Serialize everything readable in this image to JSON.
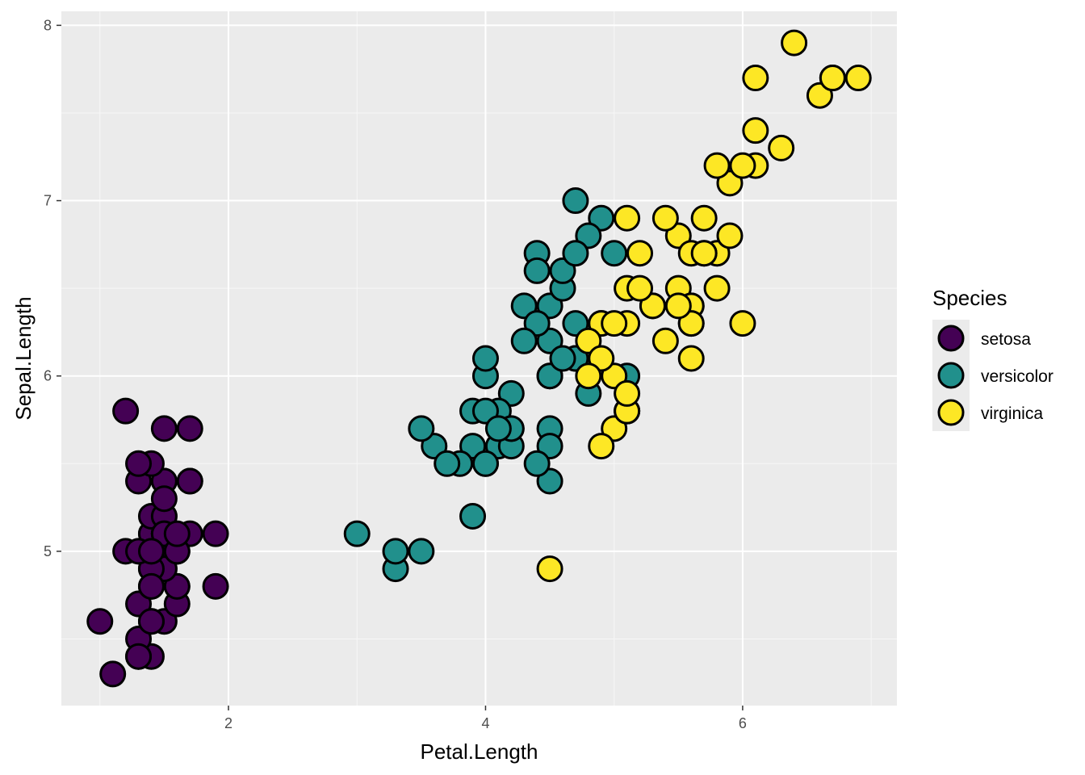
{
  "chart_data": {
    "type": "scatter",
    "xlabel": "Petal.Length",
    "ylabel": "Sepal.Length",
    "xlim": [
      0.7,
      7.2
    ],
    "ylim": [
      4.12,
      8.08
    ],
    "xticks": [
      2,
      4,
      6
    ],
    "yticks": [
      5,
      6,
      7,
      8
    ],
    "grid": true,
    "legend": {
      "title": "Species",
      "placement": "right"
    },
    "series": [
      {
        "name": "setosa",
        "color": "#440154",
        "points": [
          [
            1.4,
            5.1
          ],
          [
            1.4,
            4.9
          ],
          [
            1.3,
            4.7
          ],
          [
            1.5,
            4.6
          ],
          [
            1.4,
            5.0
          ],
          [
            1.7,
            5.4
          ],
          [
            1.4,
            4.6
          ],
          [
            1.5,
            5.0
          ],
          [
            1.4,
            4.4
          ],
          [
            1.5,
            4.9
          ],
          [
            1.5,
            5.4
          ],
          [
            1.6,
            4.8
          ],
          [
            1.4,
            4.8
          ],
          [
            1.1,
            4.3
          ],
          [
            1.2,
            5.8
          ],
          [
            1.5,
            5.7
          ],
          [
            1.3,
            5.4
          ],
          [
            1.4,
            5.1
          ],
          [
            1.7,
            5.7
          ],
          [
            1.5,
            5.1
          ],
          [
            1.7,
            5.4
          ],
          [
            1.5,
            5.1
          ],
          [
            1.0,
            4.6
          ],
          [
            1.7,
            5.1
          ],
          [
            1.9,
            4.8
          ],
          [
            1.6,
            5.0
          ],
          [
            1.6,
            5.0
          ],
          [
            1.5,
            5.2
          ],
          [
            1.4,
            5.2
          ],
          [
            1.6,
            4.7
          ],
          [
            1.6,
            4.8
          ],
          [
            1.5,
            5.4
          ],
          [
            1.5,
            5.2
          ],
          [
            1.4,
            5.5
          ],
          [
            1.5,
            4.9
          ],
          [
            1.2,
            5.0
          ],
          [
            1.3,
            5.5
          ],
          [
            1.4,
            4.9
          ],
          [
            1.3,
            4.4
          ],
          [
            1.5,
            5.1
          ],
          [
            1.3,
            5.0
          ],
          [
            1.3,
            4.5
          ],
          [
            1.3,
            4.4
          ],
          [
            1.6,
            5.0
          ],
          [
            1.9,
            5.1
          ],
          [
            1.4,
            4.8
          ],
          [
            1.6,
            5.1
          ],
          [
            1.4,
            4.6
          ],
          [
            1.5,
            5.3
          ],
          [
            1.4,
            5.0
          ]
        ]
      },
      {
        "name": "versicolor",
        "color": "#21908C",
        "points": [
          [
            4.7,
            7.0
          ],
          [
            4.5,
            6.4
          ],
          [
            4.9,
            6.9
          ],
          [
            4.0,
            5.5
          ],
          [
            4.6,
            6.5
          ],
          [
            4.5,
            5.7
          ],
          [
            4.7,
            6.3
          ],
          [
            3.3,
            4.9
          ],
          [
            4.6,
            6.6
          ],
          [
            3.9,
            5.2
          ],
          [
            3.5,
            5.0
          ],
          [
            4.2,
            5.9
          ],
          [
            4.0,
            6.0
          ],
          [
            4.7,
            6.1
          ],
          [
            3.6,
            5.6
          ],
          [
            4.4,
            6.7
          ],
          [
            4.5,
            5.6
          ],
          [
            4.1,
            5.8
          ],
          [
            4.5,
            6.2
          ],
          [
            3.9,
            5.6
          ],
          [
            4.8,
            5.9
          ],
          [
            4.0,
            6.1
          ],
          [
            4.9,
            6.3
          ],
          [
            4.7,
            6.1
          ],
          [
            4.3,
            6.4
          ],
          [
            4.4,
            6.6
          ],
          [
            4.8,
            6.8
          ],
          [
            5.0,
            6.7
          ],
          [
            4.5,
            6.0
          ],
          [
            3.5,
            5.7
          ],
          [
            3.8,
            5.5
          ],
          [
            3.7,
            5.5
          ],
          [
            3.9,
            5.8
          ],
          [
            5.1,
            6.0
          ],
          [
            4.5,
            5.4
          ],
          [
            4.5,
            6.0
          ],
          [
            4.7,
            6.7
          ],
          [
            4.4,
            6.3
          ],
          [
            4.1,
            5.6
          ],
          [
            4.0,
            5.5
          ],
          [
            4.4,
            5.5
          ],
          [
            4.6,
            6.1
          ],
          [
            4.0,
            5.8
          ],
          [
            3.3,
            5.0
          ],
          [
            4.2,
            5.6
          ],
          [
            4.2,
            5.7
          ],
          [
            4.2,
            5.7
          ],
          [
            4.3,
            6.2
          ],
          [
            3.0,
            5.1
          ],
          [
            4.1,
            5.7
          ]
        ]
      },
      {
        "name": "virginica",
        "color": "#FDE725",
        "points": [
          [
            6.0,
            6.3
          ],
          [
            5.1,
            5.8
          ],
          [
            5.9,
            7.1
          ],
          [
            5.6,
            6.3
          ],
          [
            5.8,
            6.5
          ],
          [
            6.6,
            7.6
          ],
          [
            4.5,
            4.9
          ],
          [
            6.3,
            7.3
          ],
          [
            5.8,
            6.7
          ],
          [
            6.1,
            7.2
          ],
          [
            5.1,
            6.5
          ],
          [
            5.3,
            6.4
          ],
          [
            5.5,
            6.8
          ],
          [
            5.0,
            5.7
          ],
          [
            5.1,
            5.8
          ],
          [
            5.3,
            6.4
          ],
          [
            5.5,
            6.5
          ],
          [
            6.7,
            7.7
          ],
          [
            6.9,
            7.7
          ],
          [
            5.0,
            6.0
          ],
          [
            5.7,
            6.9
          ],
          [
            4.9,
            5.6
          ],
          [
            6.7,
            7.7
          ],
          [
            4.9,
            6.3
          ],
          [
            5.7,
            6.7
          ],
          [
            6.0,
            7.2
          ],
          [
            4.8,
            6.2
          ],
          [
            4.9,
            6.1
          ],
          [
            5.6,
            6.4
          ],
          [
            5.8,
            7.2
          ],
          [
            6.1,
            7.4
          ],
          [
            6.4,
            7.9
          ],
          [
            5.6,
            6.4
          ],
          [
            5.1,
            6.3
          ],
          [
            5.6,
            6.1
          ],
          [
            6.1,
            7.7
          ],
          [
            5.6,
            6.3
          ],
          [
            5.5,
            6.4
          ],
          [
            4.8,
            6.0
          ],
          [
            5.4,
            6.9
          ],
          [
            5.6,
            6.7
          ],
          [
            5.1,
            6.9
          ],
          [
            5.1,
            5.8
          ],
          [
            5.9,
            6.8
          ],
          [
            5.7,
            6.7
          ],
          [
            5.2,
            6.7
          ],
          [
            5.0,
            6.3
          ],
          [
            5.2,
            6.5
          ],
          [
            5.4,
            6.2
          ],
          [
            5.1,
            5.9
          ]
        ]
      }
    ]
  }
}
